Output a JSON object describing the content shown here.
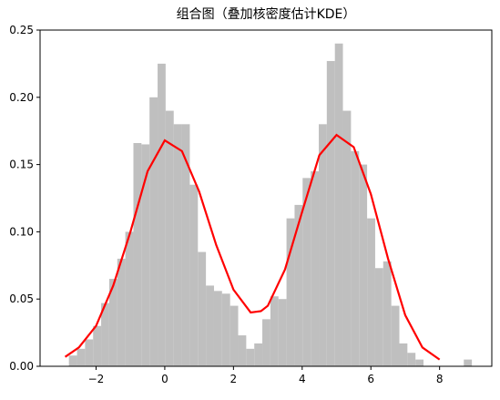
{
  "chart_data": {
    "type": "histogram",
    "title": "组合图（叠加核密度估计KDE）",
    "bins": [
      -2.79,
      -2.555,
      -2.321,
      -2.086,
      -1.852,
      -1.617,
      -1.382,
      -1.148,
      -0.913,
      -0.679,
      -0.444,
      -0.209,
      0.025,
      0.26,
      0.494,
      0.729,
      0.964,
      1.198,
      1.433,
      1.667,
      1.902,
      2.137,
      2.371,
      2.606,
      2.84,
      3.075,
      3.31,
      3.544,
      3.779,
      4.013,
      4.248,
      4.483,
      4.717,
      4.952,
      5.186,
      5.421,
      5.656,
      5.89,
      6.125,
      6.359,
      6.594,
      6.829,
      7.063,
      7.298,
      7.532,
      7.767,
      8.002,
      8.236,
      8.471,
      8.705,
      8.94
    ],
    "values": [
      0.008,
      0.013,
      0.02,
      0.03,
      0.047,
      0.065,
      0.08,
      0.1,
      0.166,
      0.165,
      0.2,
      0.225,
      0.19,
      0.18,
      0.18,
      0.135,
      0.085,
      0.06,
      0.056,
      0.054,
      0.045,
      0.023,
      0.013,
      0.017,
      0.035,
      0.052,
      0.05,
      0.11,
      0.12,
      0.14,
      0.145,
      0.18,
      0.227,
      0.24,
      0.19,
      0.16,
      0.15,
      0.11,
      0.073,
      0.078,
      0.045,
      0.017,
      0.01,
      0.005,
      0,
      0,
      0,
      0,
      0,
      0.005
    ],
    "color": "#bfbfbf",
    "kde": {
      "color": "#ff0000",
      "x": [
        -2.9,
        -2.5,
        -2,
        -1.5,
        -1,
        -0.5,
        0,
        0.5,
        1,
        1.5,
        2,
        2.5,
        2.8,
        3,
        3.5,
        4,
        4.5,
        5,
        5.5,
        6,
        6.5,
        7,
        7.5,
        8
      ],
      "values": [
        0.007,
        0.014,
        0.03,
        0.06,
        0.1,
        0.145,
        0.168,
        0.16,
        0.13,
        0.09,
        0.057,
        0.04,
        0.041,
        0.045,
        0.072,
        0.115,
        0.157,
        0.172,
        0.163,
        0.128,
        0.08,
        0.038,
        0.014,
        0.005
      ]
    },
    "xlim": [
      -3.63,
      9.52
    ],
    "ylim": [
      0,
      0.25
    ],
    "xticks": [
      {
        "value": -2,
        "label": "−2"
      },
      0,
      2,
      4,
      6,
      8
    ],
    "yticks": [
      {
        "value": 0,
        "label": "0.00"
      },
      {
        "value": 0.05,
        "label": "0.05"
      },
      {
        "value": 0.1,
        "label": "0.10"
      },
      {
        "value": 0.15,
        "label": "0.15"
      },
      {
        "value": 0.2,
        "label": "0.20"
      },
      {
        "value": 0.25,
        "label": "0.25"
      }
    ]
  }
}
